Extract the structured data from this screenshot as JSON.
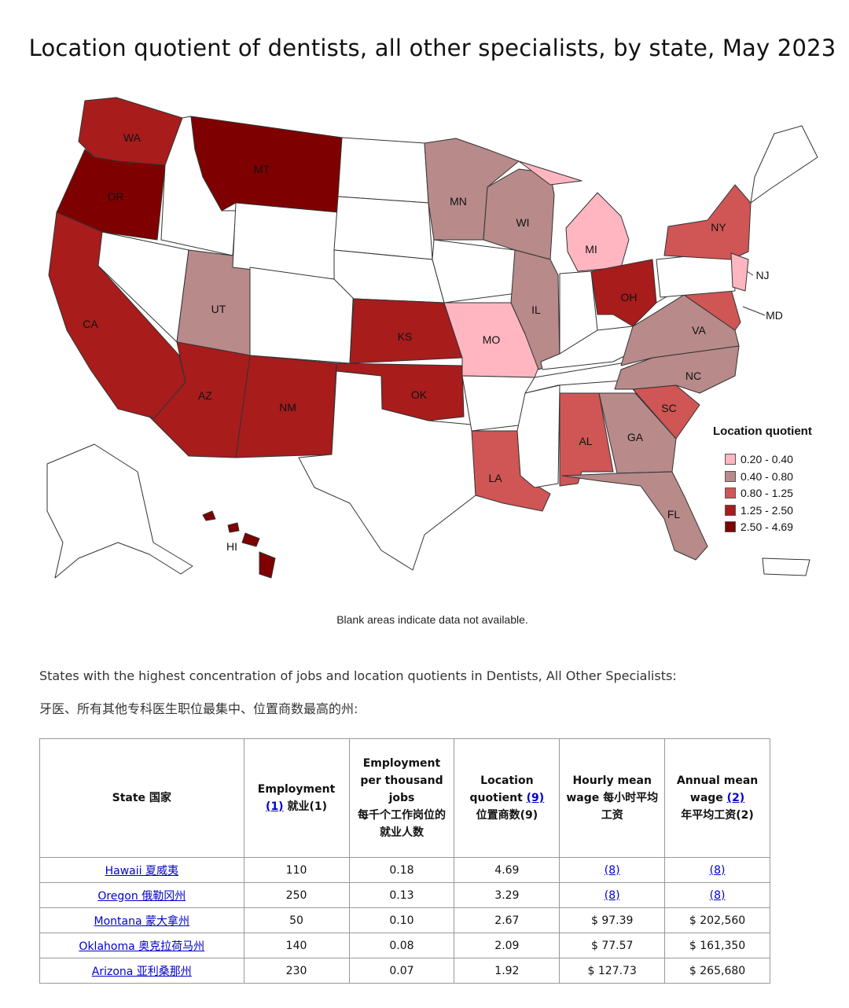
{
  "title": "Location quotient of dentists, all other specialists, by state, May 2023",
  "legend": {
    "title": "Location quotient",
    "items": [
      {
        "label": "0.20 - 0.40",
        "color": "#ffb6c1"
      },
      {
        "label": "0.40 - 0.80",
        "color": "#b88a8a"
      },
      {
        "label": "0.80 - 1.25",
        "color": "#d05555"
      },
      {
        "label": "1.25 - 2.50",
        "color": "#a81c1c"
      },
      {
        "label": "2.50 - 4.69",
        "color": "#7f0000"
      }
    ]
  },
  "states": [
    {
      "abbr": "WA",
      "tier": 3
    },
    {
      "abbr": "OR",
      "tier": 4
    },
    {
      "abbr": "MT",
      "tier": 4
    },
    {
      "abbr": "CA",
      "tier": 3
    },
    {
      "abbr": "UT",
      "tier": 1
    },
    {
      "abbr": "AZ",
      "tier": 3
    },
    {
      "abbr": "NM",
      "tier": 3
    },
    {
      "abbr": "KS",
      "tier": 3
    },
    {
      "abbr": "OK",
      "tier": 3
    },
    {
      "abbr": "MN",
      "tier": 1
    },
    {
      "abbr": "WI",
      "tier": 1
    },
    {
      "abbr": "IL",
      "tier": 1
    },
    {
      "abbr": "MO",
      "tier": 0
    },
    {
      "abbr": "MI",
      "tier": 0
    },
    {
      "abbr": "OH",
      "tier": 3
    },
    {
      "abbr": "NY",
      "tier": 2
    },
    {
      "abbr": "NJ",
      "tier": 0
    },
    {
      "abbr": "MD",
      "tier": 2
    },
    {
      "abbr": "VA",
      "tier": 1
    },
    {
      "abbr": "NC",
      "tier": 1
    },
    {
      "abbr": "SC",
      "tier": 2
    },
    {
      "abbr": "GA",
      "tier": 1
    },
    {
      "abbr": "AL",
      "tier": 2
    },
    {
      "abbr": "LA",
      "tier": 2
    },
    {
      "abbr": "FL",
      "tier": 1
    },
    {
      "abbr": "HI",
      "tier": 4
    }
  ],
  "blank_note": "Blank areas indicate data not available.",
  "intro_en": "States with the highest concentration of jobs and location quotients in Dentists, All Other Specialists:",
  "intro_zh": "牙医、所有其他专科医生职位最集中、位置商数最高的州:",
  "table": {
    "headers": {
      "state": "State  国家",
      "employment": "Employment",
      "employment_link": "(1)",
      "employment_zh": " 就业(1)",
      "per_thousand": "Employment per thousand jobs",
      "per_thousand_zh": "每千个工作岗位的就业人数",
      "lq": "Location quotient ",
      "lq_link": "(9)",
      "lq_zh": "位置商数(9)",
      "hourly": "Hourly mean wage  每小时平均工资",
      "annual": "Annual mean wage ",
      "annual_link": "(2)",
      "annual_zh": "年平均工资(2)"
    },
    "rows": [
      {
        "state": "Hawaii 夏威夷",
        "employment": "110",
        "per_thousand": "0.18",
        "lq": "4.69",
        "hourly": "(8)",
        "annual": "(8)"
      },
      {
        "state": "Oregon 俄勒冈州",
        "employment": "250",
        "per_thousand": "0.13",
        "lq": "3.29",
        "hourly": "(8)",
        "annual": "(8)"
      },
      {
        "state": "Montana 蒙大拿州",
        "employment": "50",
        "per_thousand": "0.10",
        "lq": "2.67",
        "hourly": "$ 97.39",
        "annual": "$ 202,560"
      },
      {
        "state": "Oklahoma 奥克拉荷马州",
        "employment": "140",
        "per_thousand": "0.08",
        "lq": "2.09",
        "hourly": "$ 77.57",
        "annual": "$ 161,350"
      },
      {
        "state": "Arizona 亚利桑那州",
        "employment": "230",
        "per_thousand": "0.07",
        "lq": "1.92",
        "hourly": "$ 127.73",
        "annual": "$ 265,680"
      }
    ]
  }
}
